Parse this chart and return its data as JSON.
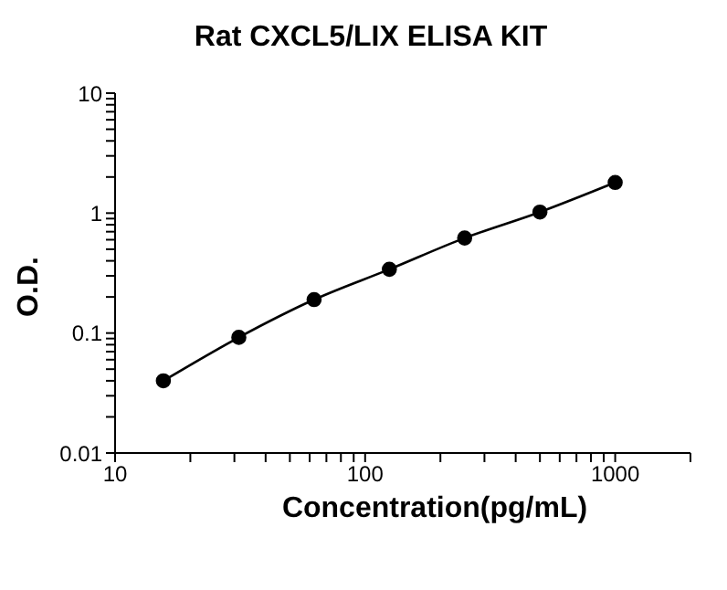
{
  "chart_data": {
    "type": "line",
    "title": "Rat CXCL5/LIX ELISA KIT",
    "xlabel": "Concentration(pg/mL)",
    "ylabel": "O.D.",
    "x": [
      15.6,
      31.25,
      62.5,
      125,
      250,
      500,
      1000
    ],
    "series": [
      {
        "color": "#000000",
        "values": [
          0.04,
          0.092,
          0.19,
          0.34,
          0.62,
          1.02,
          1.8
        ]
      }
    ],
    "log": "xy",
    "marker": "circle",
    "line_style": "solid",
    "grid": false,
    "legend": false,
    "xlim": [
      10,
      2000
    ],
    "xticks": [
      10,
      {
        "value": 20,
        "label": null
      },
      {
        "value": 30,
        "label": null
      },
      {
        "value": 40,
        "label": null
      },
      {
        "value": 50,
        "label": null
      },
      {
        "value": 60,
        "label": null
      },
      {
        "value": 70,
        "label": null
      },
      {
        "value": 80,
        "label": null
      },
      {
        "value": 90,
        "label": null
      },
      100,
      {
        "value": 200,
        "label": null
      },
      {
        "value": 300,
        "label": null
      },
      {
        "value": 400,
        "label": null
      },
      {
        "value": 500,
        "label": null
      },
      {
        "value": 600,
        "label": null
      },
      {
        "value": 700,
        "label": null
      },
      {
        "value": 800,
        "label": null
      },
      {
        "value": 900,
        "label": null
      },
      1000,
      {
        "value": 2000,
        "label": null
      }
    ],
    "ylim": [
      0.01,
      10
    ],
    "yticks": [
      0.01,
      {
        "value": 0.02,
        "label": null
      },
      {
        "value": 0.03,
        "label": null
      },
      {
        "value": 0.04,
        "label": null
      },
      {
        "value": 0.05,
        "label": null
      },
      {
        "value": 0.06,
        "label": null
      },
      {
        "value": 0.07,
        "label": null
      },
      {
        "value": 0.08,
        "label": null
      },
      {
        "value": 0.09,
        "label": null
      },
      0.1,
      {
        "value": 0.2,
        "label": null
      },
      {
        "value": 0.3,
        "label": null
      },
      {
        "value": 0.4,
        "label": null
      },
      {
        "value": 0.5,
        "label": null
      },
      {
        "value": 0.6,
        "label": null
      },
      {
        "value": 0.7,
        "label": null
      },
      {
        "value": 0.8,
        "label": null
      },
      {
        "value": 0.9,
        "label": null
      },
      1,
      {
        "value": 2,
        "label": null
      },
      {
        "value": 3,
        "label": null
      },
      {
        "value": 4,
        "label": null
      },
      {
        "value": 5,
        "label": null
      },
      {
        "value": 6,
        "label": null
      },
      {
        "value": 7,
        "label": null
      },
      {
        "value": 8,
        "label": null
      },
      {
        "value": 9,
        "label": null
      },
      10
    ]
  }
}
